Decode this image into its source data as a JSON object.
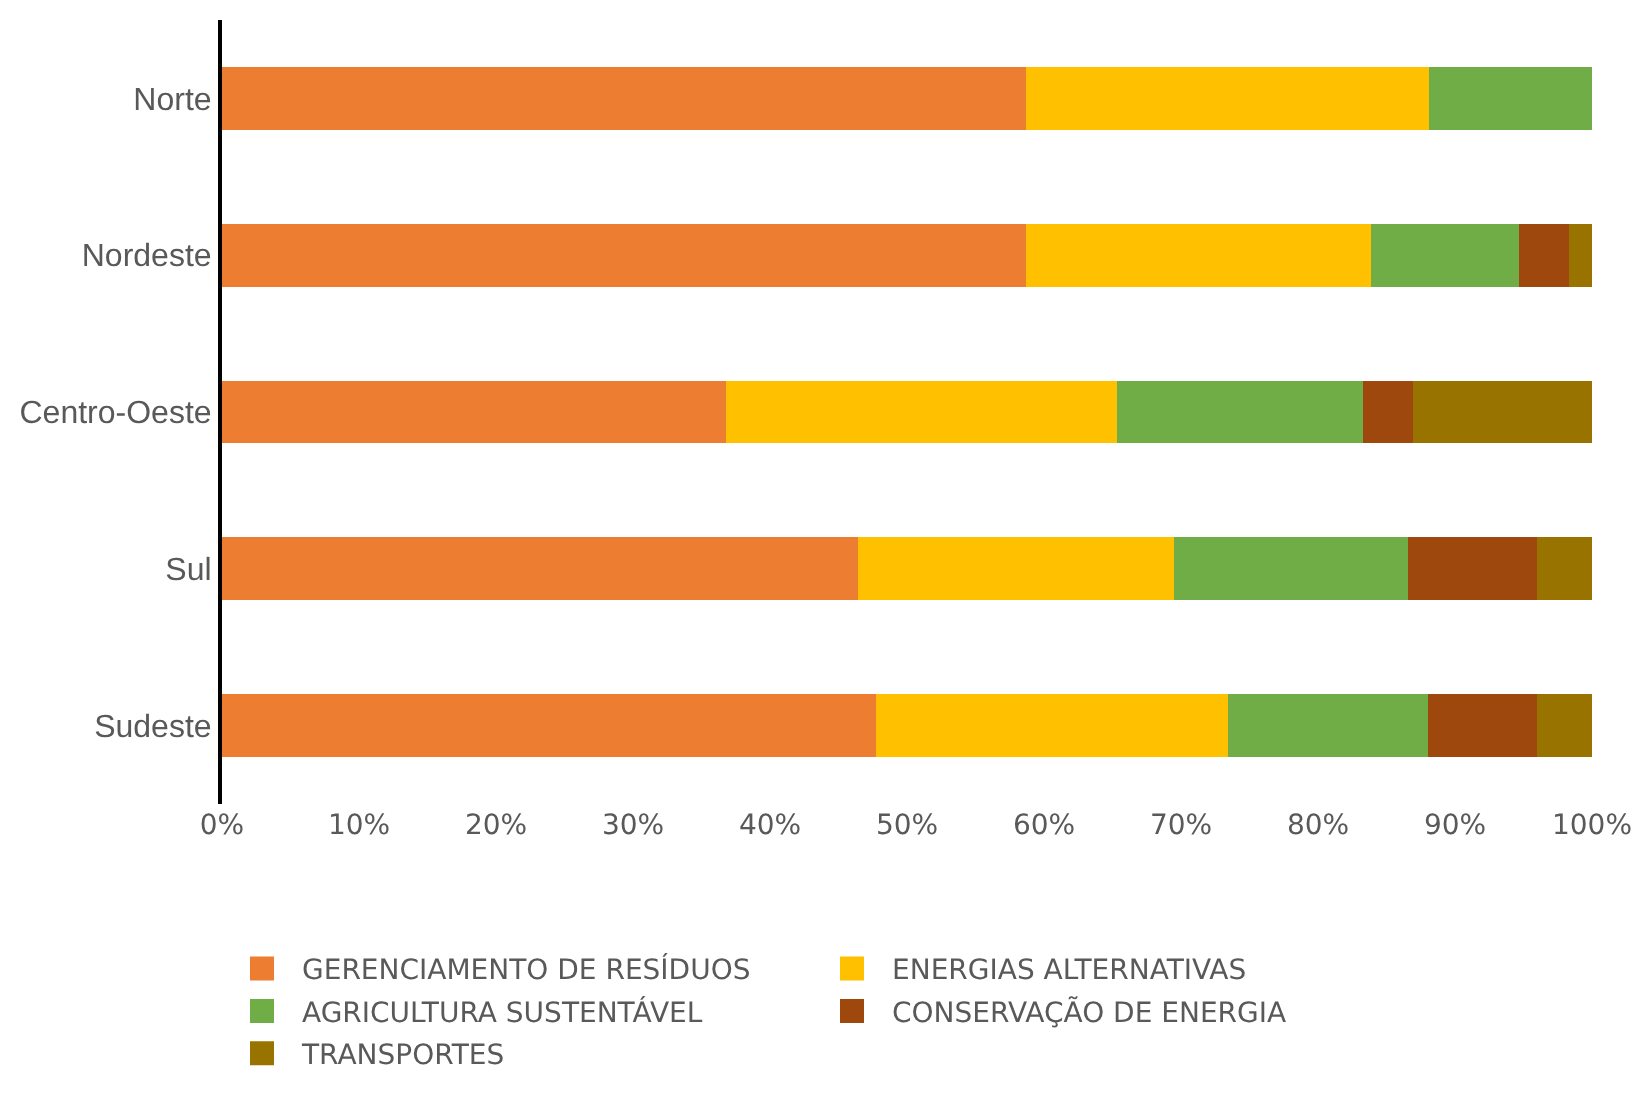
{
  "chart_data": {
    "type": "bar",
    "orientation": "horizontal",
    "stacked": true,
    "categories": [
      "Norte",
      "Nordeste",
      "Centro-Oeste",
      "Sul",
      "Sudeste"
    ],
    "series": [
      {
        "name": "GERENCIAMENTO DE RESÍDUOS",
        "color": "#ed7d31",
        "values": [
          58.7,
          58.7,
          36.8,
          46.4,
          47.7
        ]
      },
      {
        "name": "ENERGIAS ALTERNATIVAS",
        "color": "#ffc000",
        "values": [
          29.4,
          25.2,
          28.5,
          23.1,
          25.7
        ]
      },
      {
        "name": "AGRICULTURA SUSTENTÁVEL",
        "color": "#70ad47",
        "values": [
          11.9,
          10.8,
          18.0,
          17.1,
          14.6
        ]
      },
      {
        "name": "CONSERVAÇÃO DE ENERGIA",
        "color": "#9e480e",
        "values": [
          0,
          3.6,
          3.6,
          9.4,
          8.0
        ]
      },
      {
        "name": "TRANSPORTES",
        "color": "#997300",
        "values": [
          0,
          1.7,
          13.1,
          4.0,
          4.0
        ]
      }
    ],
    "xlim": [
      0,
      100
    ],
    "xticks": [
      {
        "value": 0,
        "label": "0%"
      },
      {
        "value": 10,
        "label": "10%"
      },
      {
        "value": 20,
        "label": "20%"
      },
      {
        "value": 30,
        "label": "30%"
      },
      {
        "value": 40,
        "label": "40%"
      },
      {
        "value": 50,
        "label": "50%"
      },
      {
        "value": 60,
        "label": "60%"
      },
      {
        "value": 70,
        "label": "70%"
      },
      {
        "value": 80,
        "label": "80%"
      },
      {
        "value": 90,
        "label": "90%"
      },
      {
        "value": 100,
        "label": "100%"
      }
    ],
    "grid": false,
    "legend": "bottom"
  }
}
